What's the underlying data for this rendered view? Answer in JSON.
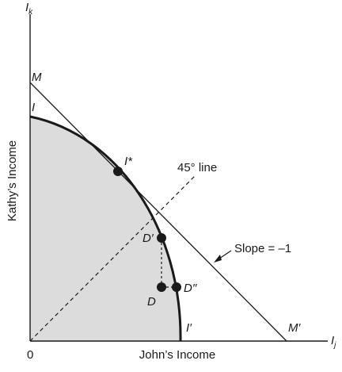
{
  "diagram": {
    "axes": {
      "y_axis_symbol": "I",
      "y_axis_subscript": "k",
      "x_axis_symbol": "I",
      "x_axis_subscript": "j",
      "y_axis_title": "Kathy’s Income",
      "x_axis_title": "John’s Income",
      "origin_label": "0"
    },
    "lines": {
      "budget_line_top_label": "M",
      "budget_line_bottom_label": "M′",
      "frontier_top_label": "I",
      "frontier_bottom_label": "I′",
      "diagonal_label": "45° line",
      "slope_label": "Slope = –1"
    },
    "points": {
      "optimum": "I*",
      "d_prime": "D′",
      "d": "D",
      "d_double_prime": "D′′"
    },
    "colors": {
      "shaded_region": "#dcdcdc",
      "ink": "#1a1a1a"
    }
  }
}
